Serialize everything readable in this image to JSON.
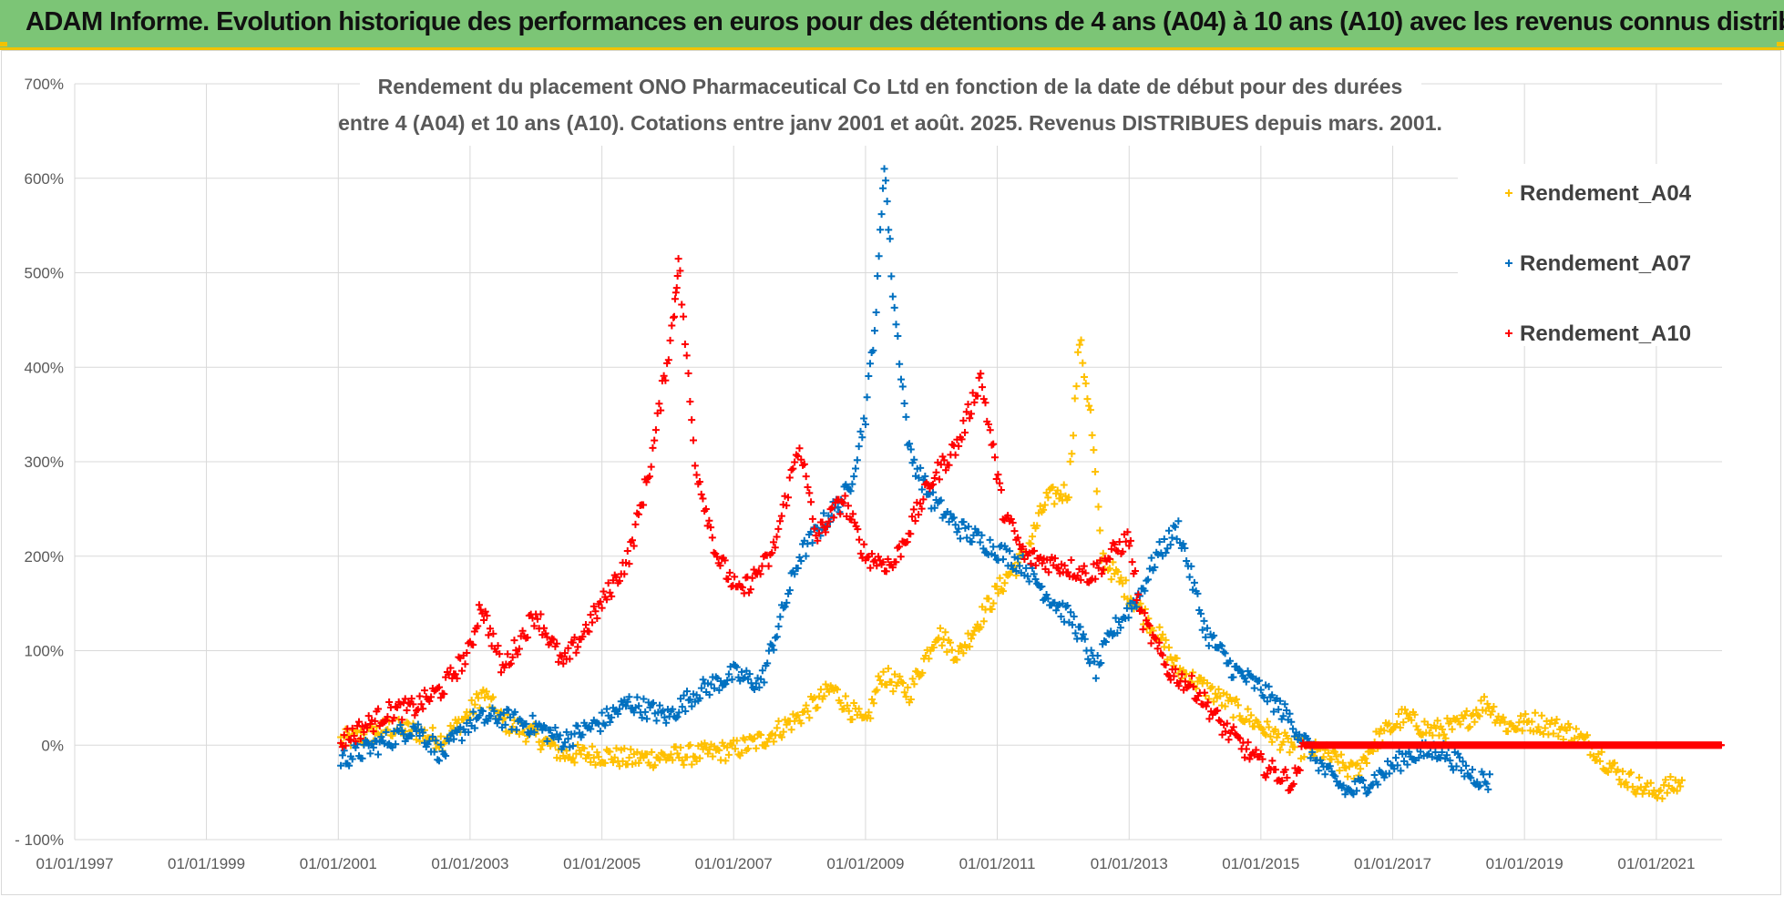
{
  "banner": {
    "title": "ADAM Informe. Evolution historique des performances en euros pour des détentions de 4 ans (A04) à 10 ans (A10) avec les revenus connus distribués"
  },
  "colors": {
    "banner_bg": "#7cc576",
    "banner_accent": "#f2c200",
    "A04": "#ffc000",
    "A07": "#0070c0",
    "A10": "#ff0000",
    "grid": "#d9d9d9"
  },
  "chart_data": {
    "type": "scatter",
    "title_lines": [
      "Rendement du placement ONO Pharmaceutical Co Ltd en fonction de la date de début pour des durées",
      "entre 4 (A04) et 10 ans (A10). Cotations entre janv 2001 et août. 2025. Revenus DISTRIBUES depuis mars. 2001."
    ],
    "x_axis": {
      "type": "date",
      "range": [
        "1997-01-01",
        "2021-12-31"
      ],
      "tick_labels": [
        "01/01/1997",
        "01/01/1999",
        "01/01/2001",
        "01/01/2003",
        "01/01/2005",
        "01/01/2007",
        "01/01/2009",
        "01/01/2011",
        "01/01/2013",
        "01/01/2015",
        "01/01/2017",
        "01/01/2019",
        "01/01/2021"
      ]
    },
    "y_axis": {
      "range": [
        -100,
        700
      ],
      "unit": "%",
      "tick_labels": [
        "- 100%",
        "0%",
        "100%",
        "200%",
        "300%",
        "400%",
        "500%",
        "600%",
        "700%"
      ]
    },
    "grid": true,
    "marker": "+",
    "legend_position": "top-right",
    "series": [
      {
        "name": "Rendement_A04",
        "color": "#ffc000",
        "points": [
          [
            "2001-01-15",
            5
          ],
          [
            "2001-06-01",
            10
          ],
          [
            "2001-10-01",
            18
          ],
          [
            "2002-03-01",
            15
          ],
          [
            "2002-08-01",
            5
          ],
          [
            "2003-01-01",
            35
          ],
          [
            "2003-03-15",
            55
          ],
          [
            "2003-07-01",
            25
          ],
          [
            "2004-01-01",
            10
          ],
          [
            "2004-06-01",
            -10
          ],
          [
            "2005-01-01",
            -10
          ],
          [
            "2005-06-01",
            -15
          ],
          [
            "2006-01-01",
            -12
          ],
          [
            "2006-06-01",
            -10
          ],
          [
            "2007-01-01",
            -5
          ],
          [
            "2007-06-01",
            5
          ],
          [
            "2008-01-01",
            30
          ],
          [
            "2008-07-01",
            60
          ],
          [
            "2009-01-01",
            20
          ],
          [
            "2009-04-01",
            75
          ],
          [
            "2009-09-01",
            55
          ],
          [
            "2010-02-01",
            120
          ],
          [
            "2010-06-01",
            95
          ],
          [
            "2010-10-01",
            135
          ],
          [
            "2011-03-01",
            180
          ],
          [
            "2011-06-01",
            200
          ],
          [
            "2011-10-01",
            260
          ],
          [
            "2012-02-01",
            270
          ],
          [
            "2012-04-01",
            430
          ],
          [
            "2012-06-01",
            350
          ],
          [
            "2012-08-01",
            200
          ],
          [
            "2013-01-01",
            160
          ],
          [
            "2013-06-01",
            120
          ],
          [
            "2013-10-01",
            80
          ],
          [
            "2014-03-01",
            60
          ],
          [
            "2014-08-01",
            40
          ],
          [
            "2015-01-01",
            20
          ],
          [
            "2015-06-01",
            0
          ],
          [
            "2016-01-01",
            -10
          ],
          [
            "2016-06-01",
            -30
          ],
          [
            "2016-10-01",
            5
          ],
          [
            "2017-03-01",
            30
          ],
          [
            "2017-08-01",
            15
          ],
          [
            "2018-01-01",
            20
          ],
          [
            "2018-06-01",
            45
          ],
          [
            "2018-10-01",
            20
          ],
          [
            "2019-03-01",
            25
          ],
          [
            "2019-09-01",
            15
          ],
          [
            "2020-01-01",
            0
          ],
          [
            "2020-06-01",
            -30
          ],
          [
            "2020-12-01",
            -50
          ],
          [
            "2021-06-01",
            -40
          ]
        ]
      },
      {
        "name": "Rendement_A07",
        "color": "#0070c0",
        "points": [
          [
            "2001-01-15",
            -15
          ],
          [
            "2001-06-01",
            -5
          ],
          [
            "2001-10-01",
            5
          ],
          [
            "2002-03-01",
            20
          ],
          [
            "2002-08-01",
            -10
          ],
          [
            "2003-01-01",
            25
          ],
          [
            "2003-06-01",
            30
          ],
          [
            "2004-01-01",
            20
          ],
          [
            "2004-06-01",
            5
          ],
          [
            "2005-01-01",
            25
          ],
          [
            "2005-06-01",
            45
          ],
          [
            "2006-01-01",
            30
          ],
          [
            "2006-06-01",
            55
          ],
          [
            "2007-01-01",
            75
          ],
          [
            "2007-06-01",
            65
          ],
          [
            "2008-01-01",
            200
          ],
          [
            "2008-06-01",
            240
          ],
          [
            "2008-10-01",
            270
          ],
          [
            "2009-01-01",
            350
          ],
          [
            "2009-03-01",
            460
          ],
          [
            "2009-04-15",
            620
          ],
          [
            "2009-06-01",
            480
          ],
          [
            "2009-09-01",
            310
          ],
          [
            "2010-01-01",
            260
          ],
          [
            "2010-06-01",
            230
          ],
          [
            "2010-12-01",
            210
          ],
          [
            "2011-06-01",
            190
          ],
          [
            "2011-10-01",
            160
          ],
          [
            "2012-03-01",
            130
          ],
          [
            "2012-07-01",
            80
          ],
          [
            "2012-10-01",
            120
          ],
          [
            "2013-03-01",
            160
          ],
          [
            "2013-06-01",
            200
          ],
          [
            "2013-10-01",
            230
          ],
          [
            "2014-03-01",
            120
          ],
          [
            "2014-08-01",
            80
          ],
          [
            "2015-01-01",
            60
          ],
          [
            "2015-06-01",
            30
          ],
          [
            "2016-01-01",
            -30
          ],
          [
            "2016-05-01",
            -50
          ],
          [
            "2016-10-01",
            -35
          ],
          [
            "2017-04-01",
            -10
          ],
          [
            "2017-10-01",
            -5
          ],
          [
            "2018-03-01",
            -30
          ],
          [
            "2018-07-01",
            -40
          ]
        ]
      },
      {
        "name": "Rendement_A10",
        "color": "#ff0000",
        "points": [
          [
            "2001-01-15",
            5
          ],
          [
            "2001-06-01",
            20
          ],
          [
            "2001-10-01",
            35
          ],
          [
            "2002-03-01",
            40
          ],
          [
            "2002-08-01",
            60
          ],
          [
            "2003-01-01",
            100
          ],
          [
            "2003-03-01",
            150
          ],
          [
            "2003-07-01",
            80
          ],
          [
            "2004-01-01",
            140
          ],
          [
            "2004-06-01",
            85
          ],
          [
            "2005-01-01",
            150
          ],
          [
            "2005-06-01",
            200
          ],
          [
            "2005-10-01",
            300
          ],
          [
            "2006-02-01",
            450
          ],
          [
            "2006-03-01",
            515
          ],
          [
            "2006-06-01",
            300
          ],
          [
            "2006-10-01",
            200
          ],
          [
            "2007-02-01",
            160
          ],
          [
            "2007-08-01",
            200
          ],
          [
            "2008-01-01",
            320
          ],
          [
            "2008-04-01",
            220
          ],
          [
            "2008-09-01",
            260
          ],
          [
            "2009-01-01",
            200
          ],
          [
            "2009-06-01",
            190
          ],
          [
            "2010-01-01",
            280
          ],
          [
            "2010-06-01",
            320
          ],
          [
            "2010-10-01",
            390
          ],
          [
            "2011-02-01",
            250
          ],
          [
            "2011-06-01",
            200
          ],
          [
            "2012-01-01",
            190
          ],
          [
            "2012-06-01",
            180
          ],
          [
            "2013-01-01",
            220
          ],
          [
            "2013-03-01",
            140
          ],
          [
            "2013-08-01",
            80
          ],
          [
            "2014-01-01",
            60
          ],
          [
            "2014-06-01",
            20
          ],
          [
            "2015-01-01",
            -20
          ],
          [
            "2015-07-01",
            -40
          ],
          [
            "2015-09-01",
            0
          ],
          [
            "2021-12-31",
            0
          ]
        ]
      }
    ]
  }
}
